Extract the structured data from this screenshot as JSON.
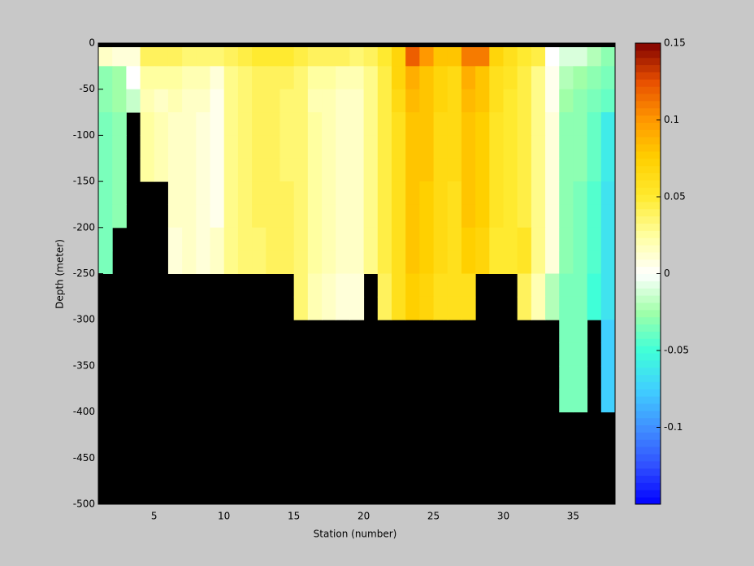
{
  "chart_data": {
    "type": "heatmap",
    "x_label": "Station (number)",
    "y_label": "Depth (meter)",
    "xlim": [
      1,
      38
    ],
    "ylim": [
      -500,
      0
    ],
    "xticks": [
      5,
      10,
      15,
      20,
      25,
      30,
      35
    ],
    "yticks": [
      0,
      -50,
      -100,
      -150,
      -200,
      -250,
      -300,
      -350,
      -400,
      -450,
      -500
    ],
    "x_edges": [
      1,
      2,
      3,
      4,
      5,
      6,
      7,
      8,
      9,
      10,
      11,
      12,
      13,
      14,
      15,
      16,
      17,
      18,
      19,
      20,
      21,
      22,
      23,
      24,
      25,
      26,
      27,
      28,
      29,
      30,
      31,
      32,
      33,
      34,
      35,
      36,
      37,
      38
    ],
    "y_edges": [
      0,
      -25,
      -50,
      -75,
      -100,
      -125,
      -150,
      -175,
      -200,
      -225,
      -250,
      -275,
      -300,
      -325,
      -350,
      -375,
      -400
    ],
    "clim": [
      -0.15,
      0.15
    ],
    "cticks": [
      0.15,
      0.1,
      0.05,
      0,
      -0.05,
      -0.1
    ],
    "colormap": [
      "#0000ff",
      "#3050ff",
      "#4090ff",
      "#40d0ff",
      "#40ffd8",
      "#a0ffa8",
      "#ffffff",
      "#ffffa0",
      "#ffea30",
      "#ffd000",
      "#ff9800",
      "#e85000",
      "#800000"
    ],
    "missing_color": "#000000",
    "z": [
      [
        0.015,
        0.01,
        0.01,
        0.04,
        0.04,
        0.04,
        0.035,
        0.035,
        0.035,
        0.04,
        0.045,
        0.05,
        0.05,
        0.05,
        0.045,
        0.04,
        0.04,
        0.04,
        0.035,
        0.04,
        0.05,
        0.07,
        0.12,
        0.1,
        0.08,
        0.08,
        0.11,
        0.11,
        0.07,
        0.06,
        0.05,
        0.045,
        0.0,
        -0.01,
        -0.01,
        -0.02,
        -0.03
      ],
      [
        -0.03,
        -0.025,
        0.0,
        0.025,
        0.025,
        0.025,
        0.02,
        0.02,
        0.01,
        0.03,
        0.035,
        0.04,
        0.04,
        0.04,
        0.035,
        0.025,
        0.025,
        0.02,
        0.02,
        0.03,
        0.045,
        0.07,
        0.09,
        0.08,
        0.07,
        0.065,
        0.09,
        0.08,
        0.06,
        0.055,
        0.045,
        0.03,
        0.005,
        -0.02,
        -0.025,
        -0.03,
        -0.035
      ],
      [
        -0.03,
        -0.025,
        -0.015,
        0.02,
        0.015,
        0.02,
        0.015,
        0.015,
        0.005,
        0.03,
        0.035,
        0.04,
        0.04,
        0.035,
        0.035,
        0.02,
        0.02,
        0.015,
        0.015,
        0.03,
        0.045,
        0.065,
        0.085,
        0.08,
        0.07,
        0.065,
        0.085,
        0.08,
        0.06,
        0.05,
        0.045,
        0.03,
        0.005,
        -0.025,
        -0.03,
        -0.035,
        -0.04
      ],
      [
        -0.035,
        -0.03,
        null,
        0.025,
        0.02,
        0.015,
        0.015,
        0.01,
        0.005,
        0.03,
        0.035,
        0.04,
        0.04,
        0.035,
        0.035,
        0.025,
        0.02,
        0.015,
        0.015,
        0.03,
        0.045,
        0.06,
        0.08,
        0.08,
        0.065,
        0.065,
        0.08,
        0.075,
        0.055,
        0.05,
        0.045,
        0.03,
        0.01,
        -0.03,
        -0.03,
        -0.04,
        -0.06
      ],
      [
        -0.035,
        -0.03,
        null,
        0.025,
        0.02,
        0.015,
        0.015,
        0.01,
        0.005,
        0.03,
        0.035,
        0.04,
        0.04,
        0.035,
        0.035,
        0.025,
        0.02,
        0.015,
        0.015,
        0.03,
        0.045,
        0.06,
        0.08,
        0.08,
        0.065,
        0.065,
        0.08,
        0.075,
        0.055,
        0.05,
        0.045,
        0.03,
        0.01,
        -0.03,
        -0.03,
        -0.04,
        -0.06
      ],
      [
        -0.035,
        -0.03,
        null,
        0.025,
        0.02,
        0.015,
        0.015,
        0.01,
        0.005,
        0.03,
        0.035,
        0.04,
        0.04,
        0.035,
        0.035,
        0.025,
        0.02,
        0.015,
        0.015,
        0.03,
        0.045,
        0.06,
        0.08,
        0.08,
        0.065,
        0.065,
        0.08,
        0.075,
        0.055,
        0.05,
        0.045,
        0.03,
        0.01,
        -0.03,
        -0.03,
        -0.04,
        -0.06
      ],
      [
        -0.035,
        -0.03,
        null,
        null,
        null,
        0.015,
        0.015,
        0.01,
        0.005,
        0.03,
        0.035,
        0.04,
        0.04,
        0.04,
        0.035,
        0.025,
        0.02,
        0.015,
        0.015,
        0.03,
        0.045,
        0.06,
        0.08,
        0.075,
        0.065,
        0.06,
        0.08,
        0.075,
        0.055,
        0.05,
        0.045,
        0.03,
        0.01,
        -0.03,
        -0.035,
        -0.045,
        -0.065
      ],
      [
        -0.035,
        -0.03,
        null,
        null,
        null,
        0.015,
        0.015,
        0.01,
        0.005,
        0.03,
        0.035,
        0.04,
        0.04,
        0.04,
        0.035,
        0.025,
        0.02,
        0.015,
        0.015,
        0.03,
        0.045,
        0.06,
        0.08,
        0.075,
        0.065,
        0.06,
        0.08,
        0.075,
        0.055,
        0.05,
        0.045,
        0.03,
        0.01,
        -0.03,
        -0.035,
        -0.045,
        -0.065
      ],
      [
        -0.035,
        null,
        null,
        null,
        null,
        0.01,
        0.015,
        0.01,
        0.015,
        0.03,
        0.035,
        0.035,
        0.04,
        0.04,
        0.035,
        0.025,
        0.02,
        0.015,
        0.015,
        0.03,
        0.045,
        0.06,
        0.08,
        0.075,
        0.065,
        0.06,
        0.075,
        0.07,
        0.05,
        0.05,
        0.055,
        0.03,
        0.01,
        -0.03,
        -0.035,
        -0.045,
        -0.065
      ],
      [
        -0.035,
        null,
        null,
        null,
        null,
        0.01,
        0.015,
        0.01,
        0.015,
        0.03,
        0.035,
        0.035,
        0.04,
        0.04,
        0.035,
        0.025,
        0.02,
        0.015,
        0.015,
        0.03,
        0.045,
        0.06,
        0.08,
        0.075,
        0.065,
        0.06,
        0.075,
        0.07,
        0.05,
        0.05,
        0.055,
        0.03,
        0.01,
        -0.03,
        -0.035,
        -0.045,
        -0.065
      ],
      [
        null,
        null,
        null,
        null,
        null,
        null,
        null,
        null,
        null,
        null,
        null,
        null,
        null,
        null,
        0.035,
        0.02,
        0.015,
        0.01,
        0.01,
        null,
        0.04,
        0.06,
        0.075,
        0.07,
        0.06,
        0.06,
        0.06,
        null,
        null,
        null,
        0.04,
        0.02,
        -0.02,
        -0.035,
        -0.035,
        -0.05,
        -0.065
      ],
      [
        null,
        null,
        null,
        null,
        null,
        null,
        null,
        null,
        null,
        null,
        null,
        null,
        null,
        null,
        0.035,
        0.02,
        0.015,
        0.01,
        0.01,
        null,
        0.04,
        0.06,
        0.075,
        0.07,
        0.06,
        0.06,
        0.06,
        null,
        null,
        null,
        0.04,
        0.02,
        -0.02,
        -0.035,
        -0.035,
        -0.05,
        -0.065
      ],
      [
        null,
        null,
        null,
        null,
        null,
        null,
        null,
        null,
        null,
        null,
        null,
        null,
        null,
        null,
        null,
        null,
        null,
        null,
        null,
        null,
        null,
        null,
        null,
        null,
        null,
        null,
        null,
        null,
        null,
        null,
        null,
        null,
        null,
        -0.035,
        -0.035,
        null,
        -0.075
      ],
      [
        null,
        null,
        null,
        null,
        null,
        null,
        null,
        null,
        null,
        null,
        null,
        null,
        null,
        null,
        null,
        null,
        null,
        null,
        null,
        null,
        null,
        null,
        null,
        null,
        null,
        null,
        null,
        null,
        null,
        null,
        null,
        null,
        null,
        -0.035,
        -0.035,
        null,
        -0.075
      ],
      [
        null,
        null,
        null,
        null,
        null,
        null,
        null,
        null,
        null,
        null,
        null,
        null,
        null,
        null,
        null,
        null,
        null,
        null,
        null,
        null,
        null,
        null,
        null,
        null,
        null,
        null,
        null,
        null,
        null,
        null,
        null,
        null,
        null,
        -0.035,
        -0.035,
        null,
        -0.075
      ],
      [
        null,
        null,
        null,
        null,
        null,
        null,
        null,
        null,
        null,
        null,
        null,
        null,
        null,
        null,
        null,
        null,
        null,
        null,
        null,
        null,
        null,
        null,
        null,
        null,
        null,
        null,
        null,
        null,
        null,
        null,
        null,
        null,
        null,
        -0.035,
        -0.035,
        null,
        -0.075
      ]
    ]
  }
}
